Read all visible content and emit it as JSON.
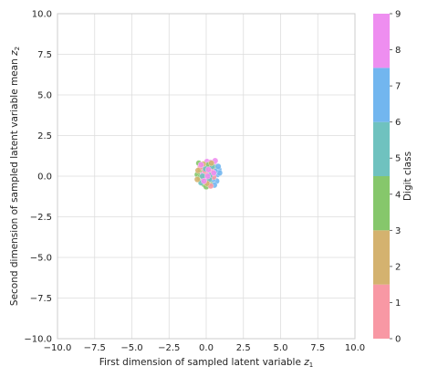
{
  "chart_data": {
    "type": "scatter",
    "xlabel": "First dimension of sampled latent variable ",
    "xlabel_sym": "z",
    "xlabel_sub": "1",
    "ylabel": "Second dimension of sampled latent variable mean ",
    "ylabel_sym": "z",
    "ylabel_sub": "2",
    "xlim": [
      -10,
      10
    ],
    "ylim": [
      -10,
      10
    ],
    "x_ticks": [
      "−10.0",
      "−7.5",
      "−5.0",
      "−2.5",
      "0.0",
      "2.5",
      "5.0",
      "7.5",
      "10.0"
    ],
    "y_ticks": [
      "−10.0",
      "−7.5",
      "−5.0",
      "−2.5",
      "0.0",
      "2.5",
      "5.0",
      "7.5",
      "10.0"
    ],
    "grid": true,
    "colorbar": {
      "label": "Digit class",
      "ticks": [
        "0",
        "1",
        "2",
        "3",
        "4",
        "5",
        "6",
        "7",
        "8",
        "9"
      ],
      "range": [
        0,
        9
      ],
      "bands": [
        {
          "from": 0,
          "to": 1.5,
          "color": "#f898a4"
        },
        {
          "from": 1.5,
          "to": 3,
          "color": "#d4b26f"
        },
        {
          "from": 3,
          "to": 4.5,
          "color": "#86c76b"
        },
        {
          "from": 4.5,
          "to": 6,
          "color": "#6fc2bf"
        },
        {
          "from": 6,
          "to": 7.5,
          "color": "#72b6ef"
        },
        {
          "from": 7.5,
          "to": 9,
          "color": "#ee8ef0"
        }
      ]
    },
    "points": [
      {
        "x": 0.05,
        "y": 0.9,
        "c": 8
      },
      {
        "x": 0.3,
        "y": 0.85,
        "c": 8
      },
      {
        "x": 0.5,
        "y": 0.7,
        "c": 8
      },
      {
        "x": -0.1,
        "y": 0.6,
        "c": 8
      },
      {
        "x": 0.2,
        "y": 0.55,
        "c": 8
      },
      {
        "x": 0.45,
        "y": 0.45,
        "c": 8
      },
      {
        "x": 0.25,
        "y": -0.1,
        "c": 8
      },
      {
        "x": -0.3,
        "y": 0.2,
        "c": 8
      },
      {
        "x": 0.6,
        "y": 0.95,
        "c": 8
      },
      {
        "x": -0.5,
        "y": 0.8,
        "c": 4
      },
      {
        "x": -0.4,
        "y": 0.4,
        "c": 4
      },
      {
        "x": -0.6,
        "y": 0.1,
        "c": 4
      },
      {
        "x": -0.3,
        "y": -0.25,
        "c": 4
      },
      {
        "x": 0.1,
        "y": 0.25,
        "c": 4
      },
      {
        "x": 0.4,
        "y": 0.15,
        "c": 4
      },
      {
        "x": 0.55,
        "y": 0.55,
        "c": 4
      },
      {
        "x": -0.15,
        "y": -0.5,
        "c": 4
      },
      {
        "x": 0.0,
        "y": -0.65,
        "c": 4
      },
      {
        "x": 0.3,
        "y": -0.45,
        "c": 4
      },
      {
        "x": -0.45,
        "y": -0.1,
        "c": 4
      },
      {
        "x": 0.15,
        "y": 0.7,
        "c": 4
      },
      {
        "x": 0.85,
        "y": 0.4,
        "c": 7
      },
      {
        "x": 0.75,
        "y": 0.1,
        "c": 7
      },
      {
        "x": 0.7,
        "y": -0.3,
        "c": 7
      },
      {
        "x": 0.55,
        "y": -0.55,
        "c": 7
      },
      {
        "x": 0.9,
        "y": 0.2,
        "c": 7
      },
      {
        "x": 0.6,
        "y": 0.3,
        "c": 7
      },
      {
        "x": 0.45,
        "y": -0.2,
        "c": 7
      },
      {
        "x": 0.8,
        "y": 0.6,
        "c": 7
      },
      {
        "x": -0.2,
        "y": -0.1,
        "c": 0
      },
      {
        "x": 0.1,
        "y": -0.3,
        "c": 0
      },
      {
        "x": 0.35,
        "y": 0.35,
        "c": 0
      },
      {
        "x": -0.4,
        "y": 0.55,
        "c": 0
      },
      {
        "x": 0.0,
        "y": 0.1,
        "c": 0
      },
      {
        "x": 0.3,
        "y": -0.6,
        "c": 0
      },
      {
        "x": -0.1,
        "y": 0.35,
        "c": 0
      },
      {
        "x": 0.5,
        "y": -0.05,
        "c": 0
      },
      {
        "x": -0.05,
        "y": 0.45,
        "c": 5
      },
      {
        "x": 0.25,
        "y": 0.05,
        "c": 5
      },
      {
        "x": -0.25,
        "y": 0.0,
        "c": 5
      },
      {
        "x": 0.2,
        "y": -0.2,
        "c": 5
      },
      {
        "x": 0.4,
        "y": 0.6,
        "c": 5
      },
      {
        "x": -0.35,
        "y": -0.4,
        "c": 5
      },
      {
        "x": -0.55,
        "y": 0.35,
        "c": 2
      },
      {
        "x": -0.2,
        "y": 0.75,
        "c": 2
      },
      {
        "x": 0.05,
        "y": -0.45,
        "c": 2
      },
      {
        "x": 0.35,
        "y": 0.8,
        "c": 2
      },
      {
        "x": -0.6,
        "y": -0.2,
        "c": 2
      },
      {
        "x": 0.15,
        "y": 0.4,
        "c": 9
      },
      {
        "x": -0.35,
        "y": 0.7,
        "c": 9
      },
      {
        "x": 0.5,
        "y": 0.2,
        "c": 9
      },
      {
        "x": -0.15,
        "y": -0.3,
        "c": 9
      },
      {
        "x": 0.1,
        "y": 0.0,
        "c": 9
      }
    ]
  }
}
